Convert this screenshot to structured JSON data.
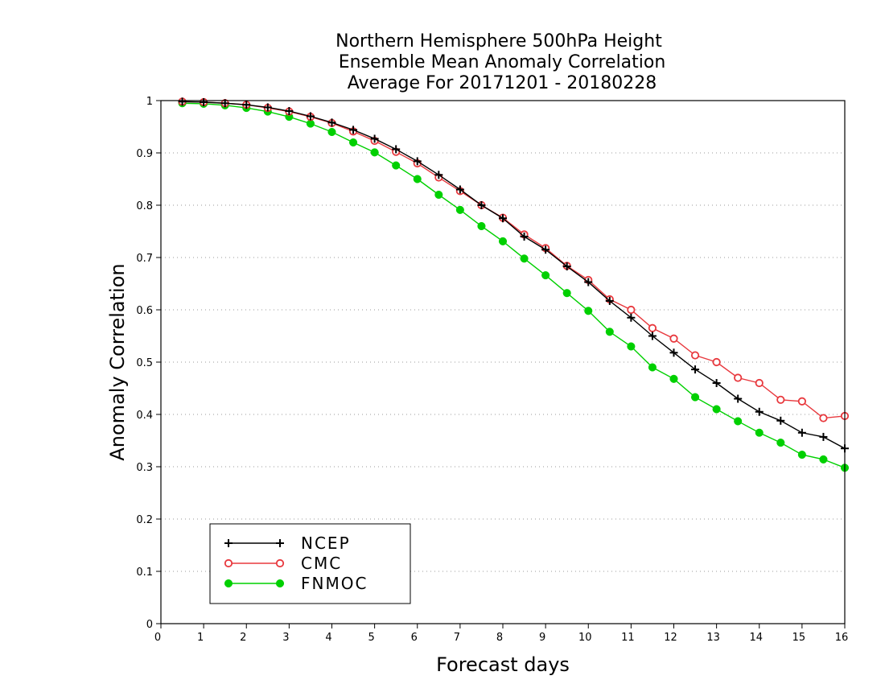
{
  "chart_data": {
    "type": "line",
    "title": [
      "Northern Hemisphere 500hPa Height",
      "Ensemble Mean Anomaly Correlation",
      "Average For 20171201 - 20180228"
    ],
    "xlabel": "Forecast days",
    "ylabel": "Anomaly Correlation",
    "xlim": [
      0,
      16
    ],
    "ylim": [
      0,
      1
    ],
    "xticks": [
      "0",
      "1",
      "2",
      "3",
      "4",
      "5",
      "6",
      "7",
      "8",
      "9",
      "10",
      "11",
      "12",
      "13",
      "14",
      "15",
      "16"
    ],
    "yticks": [
      "0",
      "0.1",
      "0.2",
      "0.3",
      "0.4",
      "0.5",
      "0.6",
      "0.7",
      "0.8",
      "0.9",
      "1"
    ],
    "grid": "horizontal dotted",
    "legend_position": "bottom-left",
    "x": [
      0.5,
      1,
      1.5,
      2,
      2.5,
      3,
      3.5,
      4,
      4.5,
      5,
      5.5,
      6,
      6.5,
      7,
      7.5,
      8,
      8.5,
      9,
      9.5,
      10,
      10.5,
      11,
      11.5,
      12,
      12.5,
      13,
      13.5,
      14,
      14.5,
      15,
      15.5,
      16
    ],
    "series": [
      {
        "name": "NCEP",
        "color": "#000000",
        "marker": "plus",
        "values": [
          0.998,
          0.997,
          0.995,
          0.992,
          0.987,
          0.98,
          0.97,
          0.958,
          0.944,
          0.927,
          0.907,
          0.884,
          0.858,
          0.83,
          0.8,
          0.775,
          0.74,
          0.715,
          0.683,
          0.653,
          0.617,
          0.585,
          0.55,
          0.518,
          0.486,
          0.46,
          0.43,
          0.405,
          0.388,
          0.365,
          0.357,
          0.335
        ]
      },
      {
        "name": "CMC",
        "color": "#e8383d",
        "marker": "open-circle",
        "values": [
          0.998,
          0.997,
          0.995,
          0.992,
          0.986,
          0.979,
          0.969,
          0.957,
          0.941,
          0.923,
          0.902,
          0.88,
          0.853,
          0.827,
          0.8,
          0.776,
          0.744,
          0.718,
          0.684,
          0.657,
          0.62,
          0.6,
          0.565,
          0.545,
          0.513,
          0.5,
          0.47,
          0.46,
          0.428,
          0.425,
          0.393,
          0.397
        ]
      },
      {
        "name": "FNMOC",
        "color": "#00d000",
        "marker": "filled-circle",
        "values": [
          0.995,
          0.994,
          0.991,
          0.986,
          0.979,
          0.969,
          0.956,
          0.94,
          0.92,
          0.901,
          0.876,
          0.85,
          0.82,
          0.791,
          0.76,
          0.731,
          0.698,
          0.666,
          0.632,
          0.598,
          0.558,
          0.53,
          0.49,
          0.468,
          0.433,
          0.41,
          0.387,
          0.365,
          0.346,
          0.323,
          0.314,
          0.298
        ]
      }
    ]
  }
}
